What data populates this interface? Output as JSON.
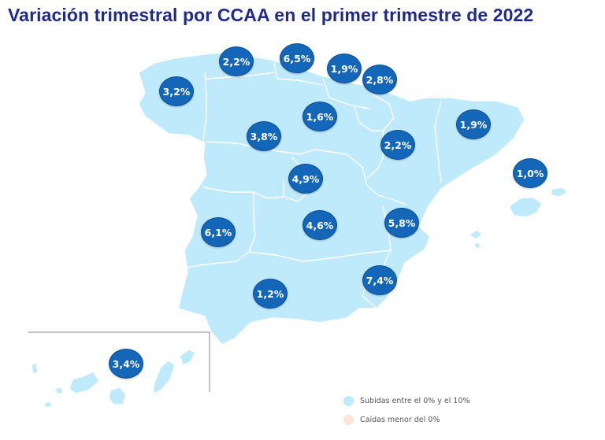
{
  "title": "Variación trimestral por CCAA en el primer trimestre de 2022",
  "colors": {
    "title": "#1f2a8c",
    "region_fill": "#bfeafb",
    "region_border": "#ffffff",
    "badge": "#1466b8",
    "legend_rise": "#bfeafb",
    "legend_fall": "#fbe3d6"
  },
  "regions": [
    {
      "name": "Galicia",
      "value": "3,2%"
    },
    {
      "name": "Asturias",
      "value": "2,2%"
    },
    {
      "name": "Cantabria",
      "value": "6,5%"
    },
    {
      "name": "País Vasco",
      "value": "1,9%"
    },
    {
      "name": "Navarra",
      "value": "2,8%"
    },
    {
      "name": "La Rioja",
      "value": "1,6%"
    },
    {
      "name": "Castilla y León",
      "value": "3,8%"
    },
    {
      "name": "Aragón",
      "value": "2,2%"
    },
    {
      "name": "Cataluña",
      "value": "1,9%"
    },
    {
      "name": "Islas Baleares",
      "value": "1,0%"
    },
    {
      "name": "Madrid",
      "value": "4,9%"
    },
    {
      "name": "Castilla-La Mancha",
      "value": "4,6%"
    },
    {
      "name": "Comunidad Valenciana",
      "value": "5,8%"
    },
    {
      "name": "Extremadura",
      "value": "6,1%"
    },
    {
      "name": "Región de Murcia",
      "value": "7,4%"
    },
    {
      "name": "Andalucía",
      "value": "1,2%"
    },
    {
      "name": "Canarias",
      "value": "3,4%"
    }
  ],
  "legend": {
    "rise_label": "Subidas entre el 0% y el 10%",
    "fall_label": "Caídas menor del 0%"
  }
}
